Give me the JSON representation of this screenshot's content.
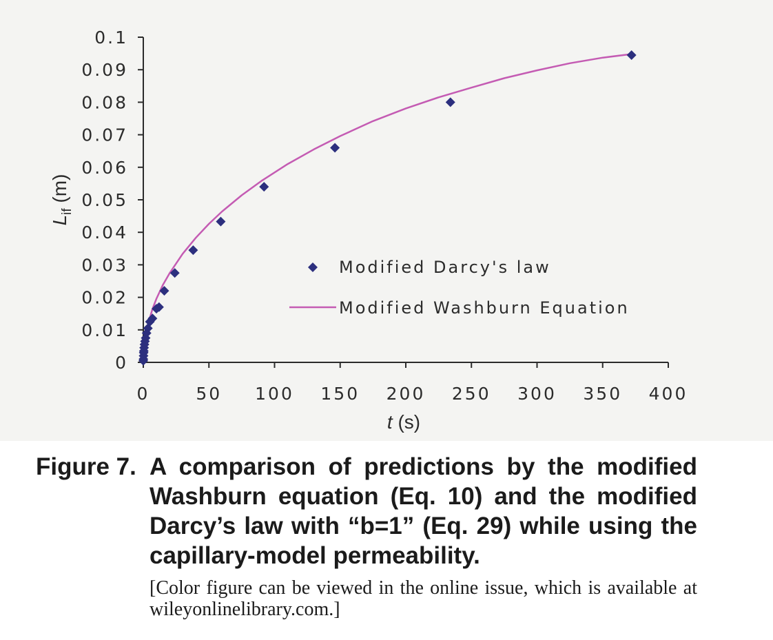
{
  "chart_data": {
    "type": "scatter",
    "title": "",
    "xlabel_italic": "t",
    "xlabel_unit": " (s)",
    "ylabel_main": "L",
    "ylabel_sub": "if",
    "ylabel_unit": " (m)",
    "xlim": [
      0,
      400
    ],
    "ylim": [
      0,
      0.1
    ],
    "x_ticks": [
      "0",
      "50",
      "100",
      "150",
      "200",
      "250",
      "300",
      "350",
      "400"
    ],
    "y_ticks": [
      "0",
      "0.01",
      "0.02",
      "0.03",
      "0.04",
      "0.05",
      "0.06",
      "0.07",
      "0.08",
      "0.09",
      "0.1"
    ],
    "grid": false,
    "legend_position": "center-right",
    "series": [
      {
        "name": "Modified Darcy's law",
        "kind": "markers",
        "marker": "diamond",
        "color": "#2c2f7e",
        "points": [
          [
            0.0,
            0.0005
          ],
          [
            0.1,
            0.001
          ],
          [
            0.2,
            0.002
          ],
          [
            0.3,
            0.003
          ],
          [
            0.4,
            0.0035
          ],
          [
            0.6,
            0.0045
          ],
          [
            0.9,
            0.0055
          ],
          [
            1.3,
            0.0065
          ],
          [
            1.8,
            0.0075
          ],
          [
            2.5,
            0.009
          ],
          [
            3.5,
            0.0105
          ],
          [
            5.0,
            0.0125
          ],
          [
            7.0,
            0.0135
          ],
          [
            10.0,
            0.0165
          ],
          [
            12.0,
            0.017
          ],
          [
            16.0,
            0.022
          ],
          [
            24.0,
            0.0275
          ],
          [
            38.0,
            0.0345
          ],
          [
            59.0,
            0.0433
          ],
          [
            92.0,
            0.054
          ],
          [
            146.0,
            0.066
          ],
          [
            234.0,
            0.08
          ],
          [
            372.0,
            0.0945
          ]
        ]
      },
      {
        "name": "Modified Washburn Equation",
        "kind": "line",
        "color": "#c45bb3",
        "points": [
          [
            0,
            0
          ],
          [
            0.5,
            0.0045
          ],
          [
            1,
            0.0062
          ],
          [
            2,
            0.0088
          ],
          [
            4,
            0.0124
          ],
          [
            7,
            0.0164
          ],
          [
            10,
            0.0196
          ],
          [
            15,
            0.0239
          ],
          [
            20,
            0.0274
          ],
          [
            30,
            0.0334
          ],
          [
            40,
            0.0383
          ],
          [
            50,
            0.0426
          ],
          [
            60,
            0.0464
          ],
          [
            75,
            0.0514
          ],
          [
            90,
            0.0558
          ],
          [
            110,
            0.061
          ],
          [
            130,
            0.0655
          ],
          [
            150,
            0.0696
          ],
          [
            175,
            0.0742
          ],
          [
            200,
            0.0781
          ],
          [
            225,
            0.0815
          ],
          [
            250,
            0.0845
          ],
          [
            275,
            0.0874
          ],
          [
            300,
            0.0898
          ],
          [
            325,
            0.092
          ],
          [
            350,
            0.0937
          ],
          [
            372,
            0.0948
          ]
        ]
      }
    ]
  },
  "caption": {
    "label": "Figure 7.",
    "text": "A comparison of predictions by the modified Washburn equation (Eq. 10) and the modified Darcy’s law with “b=1” (Eq. 29) while using the capillary-model permeability.",
    "note": "[Color figure can be viewed in the online issue, which is available at wileyonlinelibrary.com.]"
  }
}
